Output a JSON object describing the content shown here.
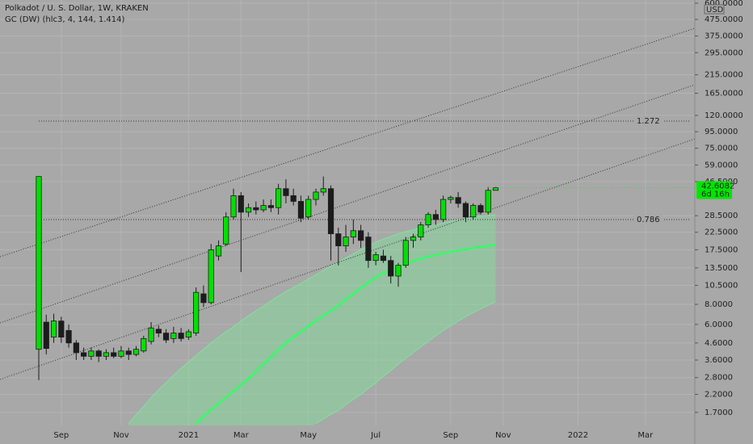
{
  "chart_data": {
    "type": "candlestick",
    "title": "Polkadot / U. S. Dollar, 1W, KRAKEN",
    "indicator_label": "GC (DW) (hlc3, 4, 144, 1.414)",
    "currency": "USD",
    "log_scale": true,
    "grid": true,
    "up_color": "#00e000",
    "down_color": "#1c1c1c",
    "categories": [
      null,
      null,
      null,
      "Sep",
      null,
      null,
      null,
      null,
      null,
      null,
      null,
      "Nov",
      null,
      null,
      null,
      null,
      null,
      null,
      null,
      null,
      "2021",
      null,
      null,
      null,
      null,
      null,
      null,
      "Mar",
      null,
      null,
      null,
      null,
      null,
      null,
      null,
      null,
      "May",
      null,
      null,
      null,
      null,
      null,
      null,
      null,
      null,
      "Jul",
      null,
      null,
      null,
      null,
      null,
      null,
      null,
      null,
      null,
      "Sep",
      null,
      null,
      null,
      null,
      null,
      null,
      "Nov",
      null,
      null,
      null,
      null,
      null,
      null,
      null,
      null,
      null,
      "2022",
      null,
      null,
      null,
      null,
      null,
      null,
      null,
      null,
      "Mar",
      null,
      null,
      null,
      null,
      null,
      null
    ],
    "open": [
      4.2,
      6.2,
      5.0,
      6.3,
      5.5,
      4.6,
      4.0,
      3.8,
      4.1,
      3.8,
      4.0,
      3.8,
      4.1,
      3.9,
      4.1,
      4.7,
      5.6,
      5.3,
      4.9,
      5.3,
      5.0,
      5.3,
      9.3,
      8.2,
      16,
      19,
      28,
      38,
      30,
      32,
      31,
      33,
      32,
      42,
      38,
      35,
      28,
      36,
      40,
      42,
      22,
      18.5,
      21,
      23,
      21,
      15,
      16,
      15,
      12,
      14,
      20,
      21,
      25,
      29,
      27,
      36,
      37,
      34,
      28,
      33,
      30,
      41,
      null,
      null,
      null,
      null,
      null,
      null,
      null,
      null,
      null,
      null,
      null,
      null,
      null,
      null,
      null,
      null,
      null,
      null,
      null,
      null,
      null,
      null,
      null,
      null,
      null,
      null
    ],
    "high": [
      50,
      6.9,
      7.0,
      6.7,
      6.0,
      4.8,
      4.3,
      4.3,
      4.2,
      4.2,
      4.3,
      4.4,
      4.3,
      4.4,
      5.1,
      6.2,
      5.9,
      5.6,
      5.8,
      5.7,
      5.6,
      10.2,
      10.5,
      19,
      20,
      30,
      42,
      40,
      34,
      35,
      36,
      36,
      45,
      48,
      42,
      38,
      38,
      42,
      50,
      44,
      24,
      25,
      27,
      25,
      22.5,
      17,
      17.5,
      16,
      14.5,
      21,
      22,
      26,
      30,
      31,
      38,
      38,
      40,
      35,
      34,
      34,
      43,
      43,
      null,
      null,
      null,
      null,
      null,
      null,
      null,
      null,
      null,
      null,
      null,
      null,
      null,
      null,
      null,
      null,
      null,
      null,
      null,
      null,
      null,
      null,
      null,
      null,
      null,
      null
    ],
    "low": [
      2.7,
      3.9,
      4.6,
      4.6,
      4.3,
      3.6,
      3.6,
      3.6,
      3.5,
      3.6,
      3.7,
      3.7,
      3.6,
      3.8,
      4.0,
      4.5,
      5.0,
      4.6,
      4.6,
      4.7,
      4.8,
      5.1,
      7.7,
      8.0,
      15,
      18.5,
      27,
      12.7,
      28,
      29,
      30,
      30,
      29,
      34,
      33,
      26,
      27,
      33,
      38,
      15,
      14,
      17,
      19,
      18,
      13.5,
      14,
      14.5,
      10.8,
      10.3,
      13.5,
      18,
      20,
      24,
      25,
      26,
      34,
      32,
      26,
      27,
      29,
      29,
      41,
      null,
      null,
      null,
      null,
      null,
      null,
      null,
      null,
      null,
      null,
      null,
      null,
      null,
      null,
      null,
      null,
      null,
      null,
      null,
      null,
      null,
      null,
      null,
      null,
      null,
      null
    ],
    "close": [
      50,
      4.25,
      6.3,
      5.0,
      4.6,
      4.0,
      3.8,
      4.1,
      3.8,
      4.0,
      3.8,
      4.1,
      3.9,
      4.2,
      4.9,
      5.7,
      5.3,
      4.8,
      5.3,
      4.9,
      5.4,
      9.5,
      8.2,
      17.5,
      18.5,
      28,
      38,
      30,
      32,
      31,
      33,
      32,
      42,
      38,
      35,
      27.5,
      36,
      40,
      42,
      22,
      18.5,
      21,
      23,
      20,
      15,
      16.3,
      15,
      12,
      14,
      20,
      21,
      25,
      29,
      27,
      36,
      37,
      34,
      28,
      33,
      30,
      41,
      42.6,
      null,
      null,
      null,
      null,
      null,
      null,
      null,
      null,
      null,
      null,
      null,
      null,
      null,
      null,
      null,
      null,
      null,
      null,
      null,
      null,
      null,
      null,
      null,
      null,
      null,
      null
    ],
    "band": {
      "line_color": "#33ff66",
      "fill_color": "#7fe39a",
      "mid": [
        null,
        null,
        null,
        null,
        null,
        null,
        null,
        null,
        null,
        null,
        null,
        null,
        null,
        null,
        null,
        null,
        null,
        null,
        null,
        null,
        null,
        1.45,
        1.6,
        1.76,
        1.93,
        2.1,
        2.3,
        2.52,
        2.75,
        3.05,
        3.4,
        3.75,
        4.15,
        4.6,
        5.0,
        5.4,
        5.85,
        6.3,
        6.8,
        7.3,
        7.8,
        8.6,
        9.3,
        10.1,
        10.9,
        11.8,
        12.5,
        13.1,
        13.7,
        14.3,
        14.9,
        15.4,
        15.8,
        16.2,
        16.6,
        17.0,
        17.3,
        17.6,
        17.9,
        18.2,
        18.5,
        18.8,
        null,
        null,
        null,
        null,
        null,
        null,
        null,
        null,
        null,
        null,
        null,
        null,
        null,
        null,
        null,
        null,
        null,
        null,
        null,
        null,
        null,
        null,
        null,
        null,
        null,
        null
      ],
      "upper": [
        null,
        null,
        null,
        null,
        null,
        null,
        null,
        null,
        null,
        null,
        null,
        null,
        1.45,
        1.65,
        1.85,
        2.1,
        2.35,
        2.6,
        2.9,
        3.2,
        3.5,
        3.85,
        4.2,
        4.6,
        5.0,
        5.4,
        5.8,
        6.3,
        6.8,
        7.3,
        7.8,
        8.4,
        9.0,
        9.6,
        10.2,
        10.8,
        11.5,
        12.2,
        13.0,
        13.8,
        14.7,
        15.6,
        16.5,
        17.5,
        18.5,
        19.5,
        20.4,
        21.2,
        22.0,
        22.7,
        23.3,
        23.9,
        24.5,
        25.1,
        25.7,
        26.3,
        26.8,
        27.3,
        27.8,
        28.2,
        28.6,
        29.0,
        null,
        null,
        null,
        null,
        null,
        null,
        null,
        null,
        null,
        null,
        null,
        null,
        null,
        null,
        null,
        null,
        null,
        null,
        null,
        null,
        null,
        null,
        null,
        null,
        null,
        null
      ],
      "lower": [
        null,
        null,
        null,
        null,
        null,
        null,
        null,
        null,
        null,
        null,
        null,
        null,
        null,
        null,
        null,
        null,
        null,
        null,
        null,
        null,
        null,
        null,
        null,
        null,
        null,
        null,
        null,
        null,
        null,
        null,
        null,
        null,
        null,
        null,
        null,
        null,
        null,
        1.45,
        1.55,
        1.65,
        1.75,
        1.9,
        2.05,
        2.2,
        2.4,
        2.6,
        2.85,
        3.1,
        3.4,
        3.7,
        4.0,
        4.35,
        4.7,
        5.1,
        5.5,
        5.9,
        6.3,
        6.7,
        7.1,
        7.5,
        7.9,
        8.3,
        null,
        null,
        null,
        null,
        null,
        null,
        null,
        null,
        null,
        null,
        null,
        null,
        null,
        null,
        null,
        null,
        null,
        null,
        null,
        null,
        null,
        null,
        null,
        null,
        null,
        null
      ]
    },
    "levels": [
      {
        "label": "1.272",
        "value": 110.7
      },
      {
        "label": "0.786",
        "value": 26.97
      }
    ],
    "last_price": {
      "value": 42.6082,
      "label": "42.6082",
      "color": "#00e600"
    },
    "countdown": "6d 16h",
    "ylim": [
      1.41,
      628
    ],
    "yticks": [
      {
        "value": 600,
        "label": "600.0000"
      },
      {
        "value": 475,
        "label": "475.0000"
      },
      {
        "value": 375,
        "label": "375.0000"
      },
      {
        "value": 295,
        "label": "295.0000"
      },
      {
        "value": 215,
        "label": "215.0000"
      },
      {
        "value": 165,
        "label": "165.0000"
      },
      {
        "value": 120,
        "label": "120.0000"
      },
      {
        "value": 95,
        "label": "95.0000"
      },
      {
        "value": 75,
        "label": "75.0000"
      },
      {
        "value": 59,
        "label": "59.0000"
      },
      {
        "value": 46.5,
        "label": "46.5000"
      },
      {
        "value": 28.5,
        "label": "28.5000"
      },
      {
        "value": 22.5,
        "label": "22.5000"
      },
      {
        "value": 17.5,
        "label": "17.5000"
      },
      {
        "value": 13.5,
        "label": "13.5000"
      },
      {
        "value": 10.5,
        "label": "10.5000"
      },
      {
        "value": 8,
        "label": "8.0000"
      },
      {
        "value": 6,
        "label": "6.0000"
      },
      {
        "value": 4.6,
        "label": "4.6000"
      },
      {
        "value": 3.6,
        "label": "3.6000"
      },
      {
        "value": 2.8,
        "label": "2.8000"
      },
      {
        "value": 2.2,
        "label": "2.2000"
      },
      {
        "value": 1.7,
        "label": "1.7000"
      }
    ]
  }
}
